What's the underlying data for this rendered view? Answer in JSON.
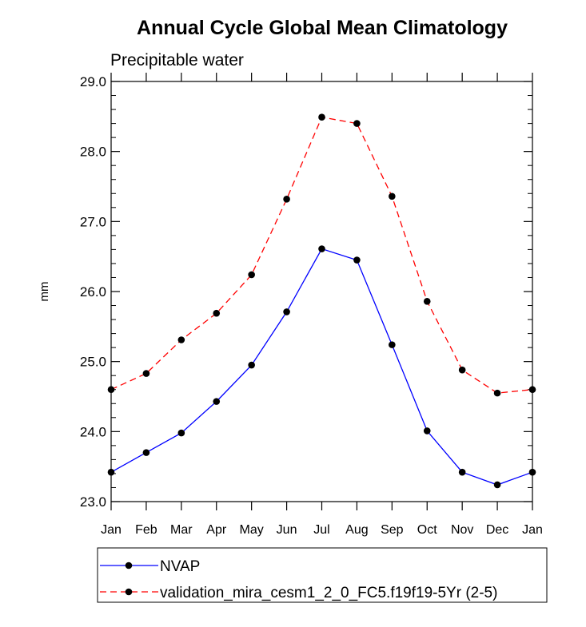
{
  "chart_data": {
    "type": "line",
    "title": "Annual Cycle Global Mean Climatology",
    "subtitle": "Precipitable water",
    "xlabel": "",
    "ylabel": "mm",
    "categories": [
      "Jan",
      "Feb",
      "Mar",
      "Apr",
      "May",
      "Jun",
      "Jul",
      "Aug",
      "Sep",
      "Oct",
      "Nov",
      "Dec",
      "Jan"
    ],
    "ylim": [
      23.0,
      29.0
    ],
    "yticks": [
      "23.0",
      "24.0",
      "25.0",
      "26.0",
      "27.0",
      "28.0",
      "29.0"
    ],
    "grid": false,
    "legend_position": "bottom",
    "series": [
      {
        "name": "NVAP",
        "color": "#0000ff",
        "line_style": "solid",
        "marker": "filled-circle",
        "values": [
          23.42,
          23.7,
          23.98,
          24.43,
          24.95,
          25.71,
          26.61,
          26.45,
          25.24,
          24.01,
          23.42,
          23.24,
          23.42
        ]
      },
      {
        "name": "validation_mira_cesm1_2_0_FC5.f19f19-5Yr (2-5)",
        "color": "#ff0000",
        "line_style": "dashed",
        "marker": "filled-circle",
        "values": [
          24.6,
          24.83,
          25.31,
          25.69,
          26.24,
          27.32,
          28.49,
          28.4,
          27.36,
          25.86,
          24.88,
          24.55,
          24.6
        ]
      }
    ]
  }
}
